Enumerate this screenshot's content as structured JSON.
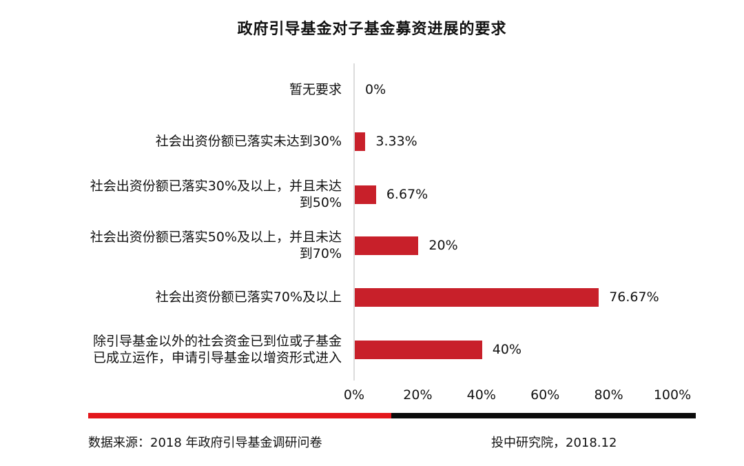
{
  "chart_data": {
    "type": "bar",
    "orientation": "horizontal",
    "title": "政府引导基金对子基金募资进展的要求",
    "categories": [
      "暂无要求",
      "社会出资份额已落实未达到30%",
      "社会出资份额已落实30%及以上，并且未达到50%",
      "社会出资份额已落实50%及以上，并且未达到70%",
      "社会出资份额已落实70%及以上",
      "除引导基金以外的社会资金已到位或子基金已成立运作，申请引导基金以增资形式进入"
    ],
    "category_lines": [
      [
        "暂无要求"
      ],
      [
        "社会出资份额已落实未达到30%"
      ],
      [
        "社会出资份额已落实30%及以上，并且未达",
        "到50%"
      ],
      [
        "社会出资份额已落实50%及以上，并且未达",
        "到70%"
      ],
      [
        "社会出资份额已落实70%及以上"
      ],
      [
        "除引导基金以外的社会资金已到位或子基金",
        "已成立运作，申请引导基金以增资形式进入"
      ]
    ],
    "values": [
      0,
      3.33,
      6.67,
      20,
      76.67,
      40
    ],
    "value_labels": [
      "0%",
      "3.33%",
      "6.67%",
      "20%",
      "76.67%",
      "40%"
    ],
    "xlim": [
      0,
      100
    ],
    "xticks": [
      "0%",
      "20%",
      "40%",
      "60%",
      "80%",
      "100%"
    ],
    "bar_color": "#c8202a",
    "grid": false
  },
  "footer": {
    "source": "数据来源：2018 年政府引导基金调研问卷",
    "credit": "投中研究院，2018.12",
    "rule_colors": [
      "#e3171c",
      "#0b0b0b"
    ]
  }
}
